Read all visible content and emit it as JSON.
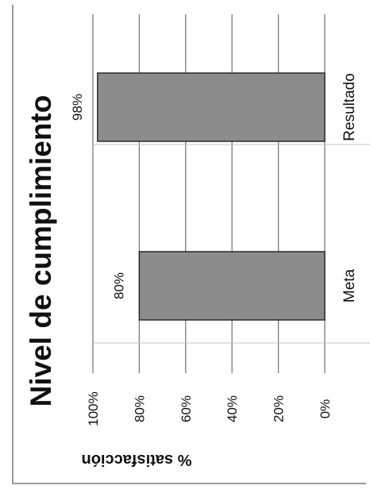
{
  "chart_data": {
    "type": "bar",
    "orientation": "horizontal-rotated",
    "title": "Nivel de cumplimiento",
    "categories": [
      "Meta",
      "Resultado"
    ],
    "values": [
      80,
      98
    ],
    "data_labels": [
      "80%",
      "98%"
    ],
    "ylabel": "% satisfacción",
    "ylim": [
      0,
      100
    ],
    "ticks": [
      0,
      20,
      40,
      60,
      80,
      100
    ],
    "tick_labels": [
      "0%",
      "20%",
      "40%",
      "60%",
      "80%",
      "100%"
    ],
    "grid": true,
    "legend": "none",
    "colors": {
      "bar": "#8c8c8c",
      "bar_edge": "#2a2a2a",
      "grid": "#7a7a7a",
      "text": "#111111"
    }
  }
}
